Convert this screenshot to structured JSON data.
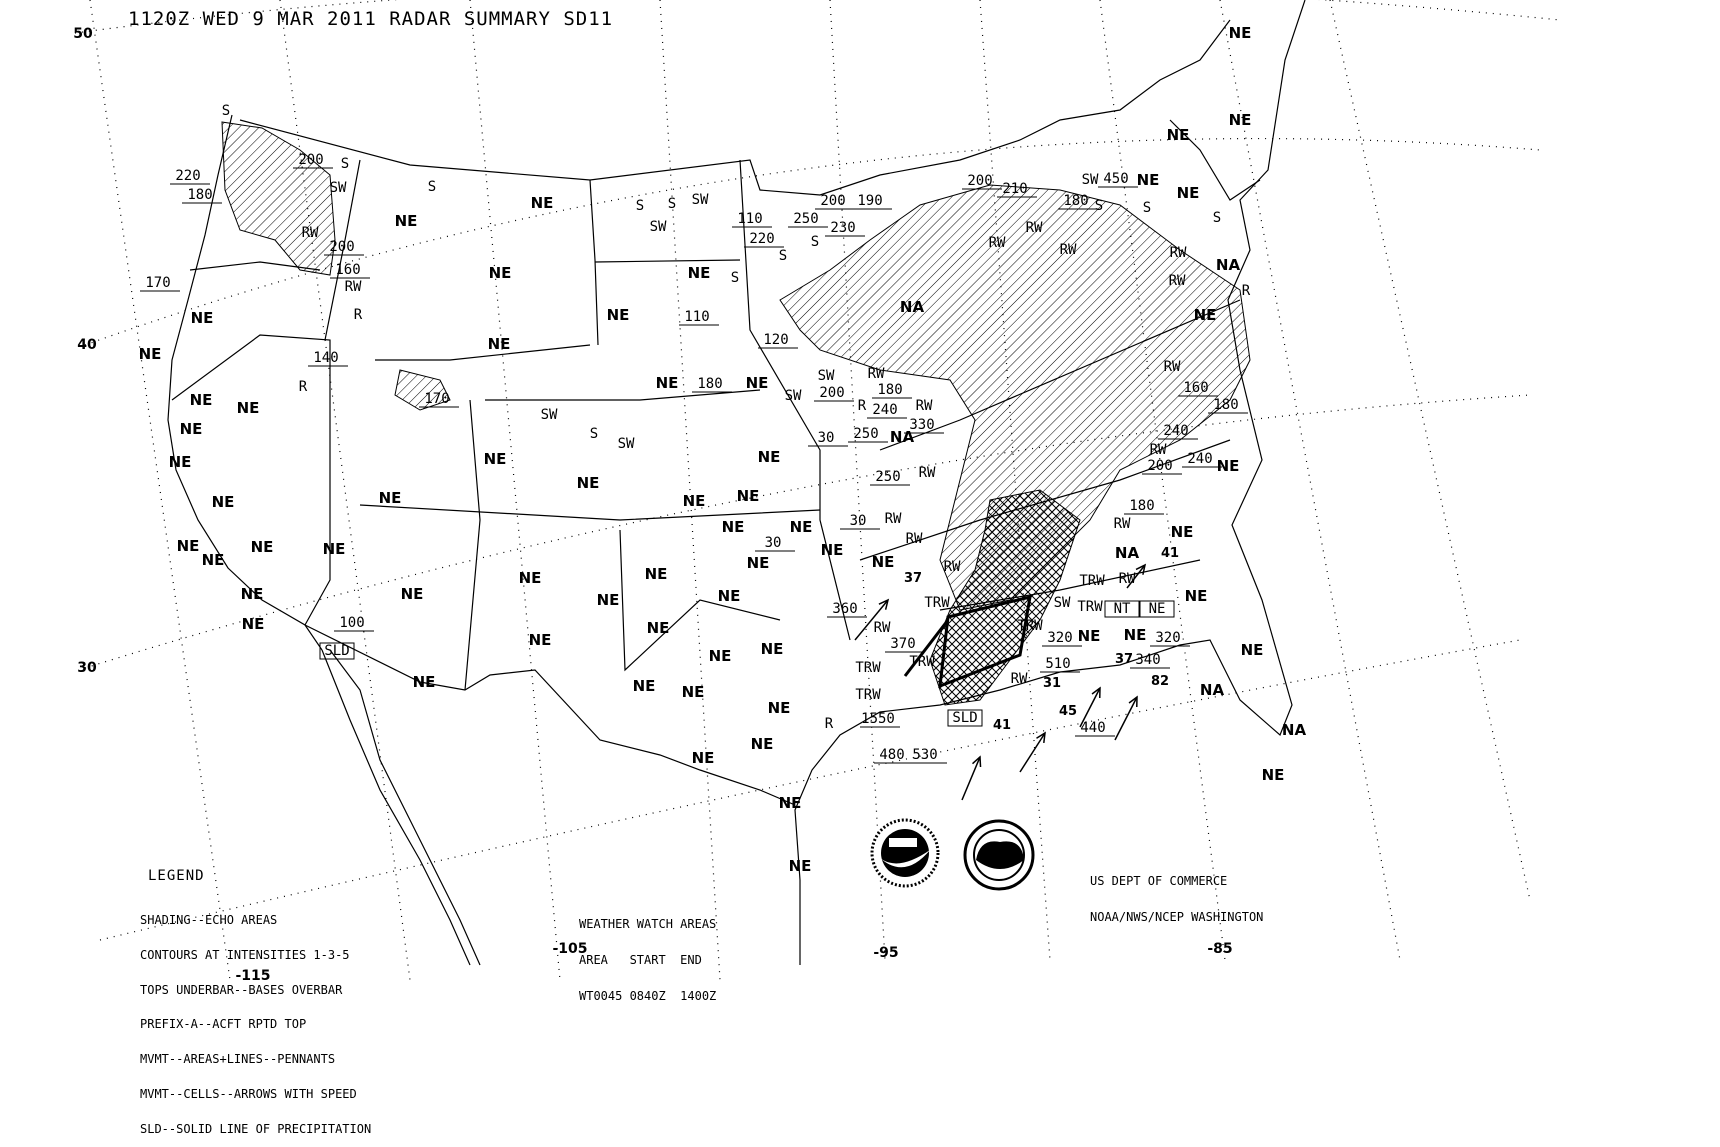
{
  "title": "1120Z WED  9 MAR 2011 RADAR SUMMARY SD11",
  "legend": {
    "heading": "LEGEND",
    "lines": [
      "SHADING--ECHO AREAS",
      "CONTOURS AT INTENSITIES 1-3-5",
      "TOPS UNDERBAR--BASES OVERBAR",
      "PREFIX-A--ACFT RPTD TOP",
      "MVMT--AREAS+LINES--PENNANTS",
      "MVMT--CELLS--ARROWS WITH SPEED",
      "SLD--SOLID LINE OF PRECIPITATION"
    ]
  },
  "watch_areas": {
    "heading": "WEATHER WATCH AREAS",
    "columns": "AREA   START  END",
    "rows": [
      "WT0045 0840Z  1400Z"
    ]
  },
  "credit": [
    "US DEPT OF COMMERCE",
    "NOAA/NWS/NCEP WASHINGTON"
  ],
  "logos": [
    "NOAA",
    "NATIONAL WEATHER SERVICE"
  ],
  "latitude_labels": [
    "50",
    "40",
    "30"
  ],
  "longitude_labels": [
    "-115",
    "-105",
    "-95",
    "-85"
  ],
  "echo_codes": {
    "ne": [
      "NE",
      "NE",
      "NE",
      "NE",
      "NE",
      "NE",
      "NE",
      "NE",
      "NE",
      "NE",
      "NE",
      "NE",
      "NE",
      "NE",
      "NE",
      "NE",
      "NE",
      "NE",
      "NE",
      "NE",
      "NE",
      "NE",
      "NE",
      "NE",
      "NE",
      "NE",
      "NE",
      "NE",
      "NE",
      "NE",
      "NE",
      "NE",
      "NE",
      "NE",
      "NE",
      "NE",
      "NE",
      "NE",
      "NE",
      "NE",
      "NE",
      "NE",
      "NE",
      "NE",
      "NE",
      "NE",
      "NE",
      "NE",
      "NE",
      "NE",
      "NE",
      "NE",
      "NE",
      "NE",
      "NE",
      "NE",
      "NE",
      "NE",
      "NE",
      "NE",
      "NE",
      "NE"
    ],
    "na": [
      "NA",
      "NA",
      "NA",
      "NA",
      "NA",
      "NA"
    ],
    "tops": [
      "220",
      "180",
      "200",
      "200",
      "160",
      "170",
      "140",
      "170",
      "100",
      "110",
      "220",
      "250",
      "200",
      "190",
      "230",
      "110",
      "120",
      "180",
      "200",
      "180",
      "240",
      "250",
      "330",
      "250",
      "30",
      "30",
      "30",
      "360",
      "370",
      "160",
      "180",
      "240",
      "200",
      "240",
      "180",
      "320",
      "340",
      "320",
      "510",
      "440",
      "450",
      "200",
      "210",
      "180",
      "1550",
      "480",
      "530"
    ],
    "precip": [
      "S",
      "S",
      "SW",
      "S",
      "SW",
      "S",
      "S",
      "SW",
      "S",
      "S",
      "S",
      "RW",
      "R",
      "RW",
      "R",
      "SW",
      "S",
      "SW",
      "SW",
      "SW",
      "R",
      "RW",
      "RW",
      "RW",
      "RW",
      "RW",
      "RW",
      "TRW",
      "RW",
      "TRW",
      "TRW",
      "R",
      "TRW",
      "RW",
      "TRW",
      "SW",
      "TRW",
      "RW",
      "TRW",
      "RW",
      "RW",
      "RW",
      "RW",
      "RW",
      "RW",
      "RW",
      "RW",
      "S",
      "S",
      "SW",
      "S",
      "R"
    ],
    "cell_speeds": [
      "37",
      "31",
      "41",
      "45",
      "37",
      "82",
      "41"
    ],
    "boxes": [
      "SLD",
      "SLD",
      "NT",
      "NE"
    ]
  }
}
